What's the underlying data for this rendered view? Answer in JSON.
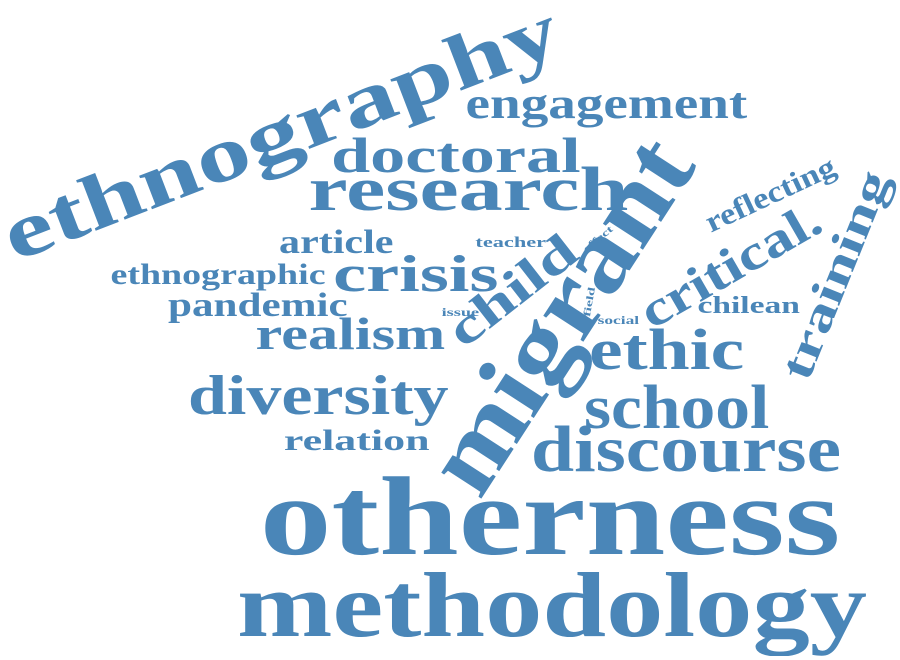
{
  "word_cloud": {
    "color": "#4a86b8",
    "background": "#ffffff",
    "words": {
      "ethnography": "ethnography",
      "engagement": "engagement",
      "doctoral": "doctoral",
      "research": "research",
      "migrant": "migrant",
      "reflecting": "reflecting",
      "training": "training",
      "critical": "critical.",
      "article": "article",
      "teacher": "teacher",
      "effect": "effect",
      "crisis": "crisis",
      "ethnographic": "ethnographic",
      "child": "child",
      "field": "field",
      "pandemic": "pandemic",
      "issue": "issue",
      "social": "social",
      "chilean": "chilean",
      "realism": "realism",
      "ethic": "ethic",
      "diversity": "diversity",
      "school": "school",
      "relation": "relation",
      "discourse": "discourse",
      "otherness": "otherness",
      "methodology": "methodology"
    }
  }
}
